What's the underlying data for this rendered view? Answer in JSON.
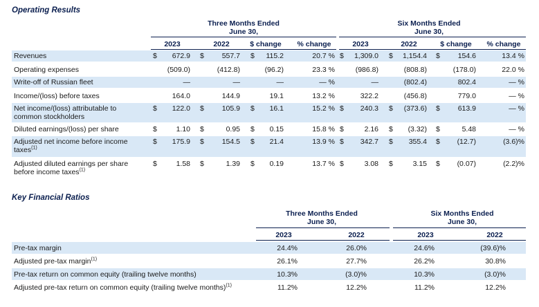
{
  "operating": {
    "title": "Operating Results",
    "group1": {
      "line1": "Three Months Ended",
      "line2": "June 30,"
    },
    "group2": {
      "line1": "Six Months Ended",
      "line2": "June 30,"
    },
    "columns": [
      "2023",
      "2022",
      "$ change",
      "% change",
      "2023",
      "2022",
      "$ change",
      "% change"
    ],
    "rows": [
      {
        "label": "Revenues",
        "dollar": true,
        "cells": [
          "672.9",
          "557.7",
          "115.2",
          "20.7 %",
          "1,309.0",
          "1,154.4",
          "154.6",
          "13.4 %"
        ]
      },
      {
        "label": "Operating expenses",
        "dollar": false,
        "cells": [
          "(509.0)",
          "(412.8)",
          "(96.2)",
          "23.3 %",
          "(986.8)",
          "(808.8)",
          "(178.0)",
          "22.0 %"
        ]
      },
      {
        "label": "Write-off of Russian fleet",
        "dollar": false,
        "cells": [
          "—",
          "—",
          "—",
          "— %",
          "—",
          "(802.4)",
          "802.4",
          "— %"
        ]
      },
      {
        "label": "Income/(loss) before taxes",
        "dollar": false,
        "cells": [
          "164.0",
          "144.9",
          "19.1",
          "13.2 %",
          "322.2",
          "(456.8)",
          "779.0",
          "— %"
        ]
      },
      {
        "label": "Net income/(loss) attributable to",
        "label2": "common stockholders",
        "dollar": true,
        "cells": [
          "122.0",
          "105.9",
          "16.1",
          "15.2 %",
          "240.3",
          "(373.6)",
          "613.9",
          "— %"
        ]
      },
      {
        "label": "Diluted earnings/(loss) per share",
        "dollar": true,
        "cells": [
          "1.10",
          "0.95",
          "0.15",
          "15.8 %",
          "2.16",
          "(3.32)",
          "5.48",
          "— %"
        ]
      },
      {
        "label": "Adjusted net income before income",
        "label2": "taxes",
        "sup": "(1)",
        "dollar": true,
        "cells": [
          "175.9",
          "154.5",
          "21.4",
          "13.9 %",
          "342.7",
          "355.4",
          "(12.7)",
          "(3.6)%"
        ]
      },
      {
        "label": "Adjusted diluted earnings per share",
        "label2": "before income taxes",
        "sup": "(1)",
        "dollar": true,
        "cells": [
          "1.58",
          "1.39",
          "0.19",
          "13.7 %",
          "3.08",
          "3.15",
          "(0.07)",
          "(2.2)%"
        ]
      }
    ],
    "dollar_sign": "$"
  },
  "ratios": {
    "title": "Key Financial Ratios",
    "group1": {
      "line1": "Three Months Ended",
      "line2": "June 30,"
    },
    "group2": {
      "line1": "Six Months Ended",
      "line2": "June 30,"
    },
    "columns": [
      "2023",
      "2022",
      "2023",
      "2022"
    ],
    "rows": [
      {
        "label": "Pre-tax margin",
        "cells": [
          "24.4%",
          "26.0%",
          "24.6%",
          "(39.6)%"
        ]
      },
      {
        "label": "Adjusted pre-tax margin",
        "sup": "(1)",
        "cells": [
          "26.1%",
          "27.7%",
          "26.2%",
          "30.8%"
        ]
      },
      {
        "label": "Pre-tax return on common equity (trailing twelve months)",
        "cells": [
          "10.3%",
          "(3.0)%",
          "10.3%",
          "(3.0)%"
        ]
      },
      {
        "label": "Adjusted pre-tax return on common equity (trailing twelve months)",
        "sup": "(1)",
        "cells": [
          "11.2%",
          "12.2%",
          "11.2%",
          "12.2%"
        ]
      }
    ]
  },
  "colors": {
    "shade": "#d9e8f6",
    "header": "#0b1f4f"
  }
}
